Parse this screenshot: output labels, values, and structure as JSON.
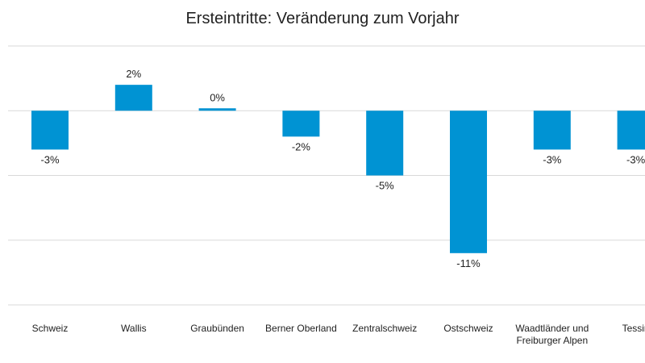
{
  "chart_data": {
    "type": "bar",
    "title": "Ersteintritte: Veränderung zum Vorjahr",
    "categories": [
      [
        "Schweiz"
      ],
      [
        "Wallis"
      ],
      [
        "Graubünden"
      ],
      [
        "Berner Oberland"
      ],
      [
        "Zentralschweiz"
      ],
      [
        "Ostschweiz"
      ],
      [
        "Waadtländer und",
        "Freiburger Alpen"
      ],
      [
        "Tessin"
      ]
    ],
    "values": [
      -3,
      2,
      0,
      -2,
      -5,
      -11,
      -3,
      -3
    ],
    "data_labels": [
      "-3%",
      "2%",
      "0%",
      "-2%",
      "-5%",
      "-11%",
      "-3%",
      "-3%"
    ],
    "bar_color": "#0093d3",
    "grid": true,
    "gridline_color": "#d9d9d9",
    "ylim": [
      -15,
      5
    ],
    "y_gridlines": [
      5,
      0,
      -5,
      -10,
      -15
    ],
    "xlabel": "",
    "ylabel": ""
  }
}
